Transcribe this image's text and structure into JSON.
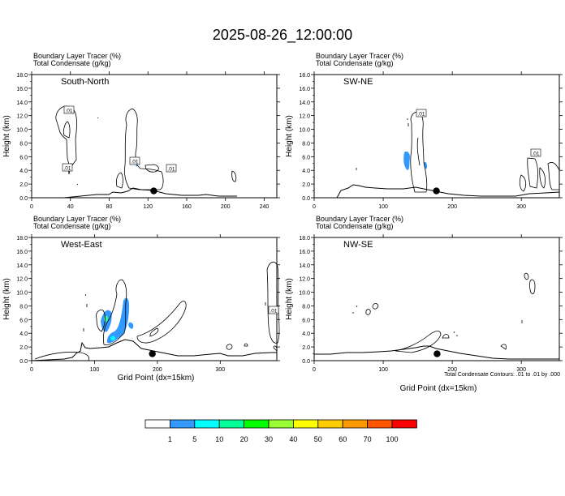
{
  "figure_title": "2025-08-26_12:00:00",
  "panel_header_line1": "Boundary Layer Tracer   (%)",
  "panel_header_line2": "Total Condensate   (g/kg)",
  "x_axis_label": "Grid Point (dx=15km)",
  "y_axis_label": "Height (km)",
  "footnote": "Total Condensate Contours: .01 to .01 by .000",
  "colors": {
    "bar": [
      "#ffffff",
      "#3399ff",
      "#00ffff",
      "#00ff99",
      "#00ff00",
      "#99ff33",
      "#ffff00",
      "#ffcc00",
      "#ff9900",
      "#ff5500",
      "#ff0000"
    ],
    "tracer_blue": "#3399ff",
    "tracer_cyan": "#00ffff",
    "tracer_green": "#33ff99",
    "terrain": "#000000"
  },
  "colorbar_labels": [
    "1",
    "5",
    "10",
    "20",
    "30",
    "40",
    "50",
    "60",
    "70",
    "100"
  ],
  "chart_data": [
    {
      "type": "contour",
      "section": "South-North",
      "xlim": [
        0,
        253
      ],
      "ylim": [
        0,
        18
      ],
      "xticks": [
        0,
        40,
        80,
        120,
        160,
        200,
        240
      ],
      "yticks": [
        0,
        2,
        4,
        6,
        8,
        10,
        12,
        14,
        16,
        18
      ],
      "ytick_labels": [
        "0.0",
        "2.0",
        "4.0",
        "6.0",
        "8.0",
        "10.0",
        "12.0",
        "14.0",
        "16.0",
        "18.0"
      ],
      "contour_labels": [
        ".01",
        ".01",
        ".01",
        ".01"
      ],
      "point_x": 126,
      "point_y": 1.0
    },
    {
      "type": "contour",
      "section": "SW-NE",
      "xlim": [
        0,
        355
      ],
      "ylim": [
        0,
        18
      ],
      "xticks": [
        0,
        100,
        200,
        300
      ],
      "yticks": [
        0,
        2,
        4,
        6,
        8,
        10,
        12,
        14,
        16,
        18
      ],
      "ytick_labels": [
        "0.0",
        "2.0",
        "4.0",
        "6.0",
        "8.0",
        "10.0",
        "12.0",
        "14.0",
        "16.0",
        "18.0"
      ],
      "contour_labels": [
        ".01",
        ".01"
      ],
      "point_x": 177,
      "point_y": 1.0
    },
    {
      "type": "contour",
      "section": "West-East",
      "xlim": [
        0,
        390
      ],
      "ylim": [
        0,
        18
      ],
      "xticks": [
        0,
        100,
        200,
        300
      ],
      "yticks": [
        0,
        2,
        4,
        6,
        8,
        10,
        12,
        14,
        16,
        18
      ],
      "ytick_labels": [
        "0.0",
        "2.0",
        "4.0",
        "6.0",
        "8.0",
        "10.0",
        "12.0",
        "14.0",
        "16.0",
        "18.0"
      ],
      "contour_labels": [
        ".01"
      ],
      "point_x": 192,
      "point_y": 1.0
    },
    {
      "type": "contour",
      "section": "NW-SE",
      "xlim": [
        0,
        355
      ],
      "ylim": [
        0,
        18
      ],
      "xticks": [
        0,
        100,
        200,
        300
      ],
      "yticks": [
        0,
        2,
        4,
        6,
        8,
        10,
        12,
        14,
        16,
        18
      ],
      "ytick_labels": [
        "0.0",
        "2.0",
        "4.0",
        "6.0",
        "8.0",
        "10.0",
        "12.0",
        "14.0",
        "16.0",
        "18.0"
      ],
      "contour_labels": [],
      "point_x": 178,
      "point_y": 1.0
    }
  ]
}
